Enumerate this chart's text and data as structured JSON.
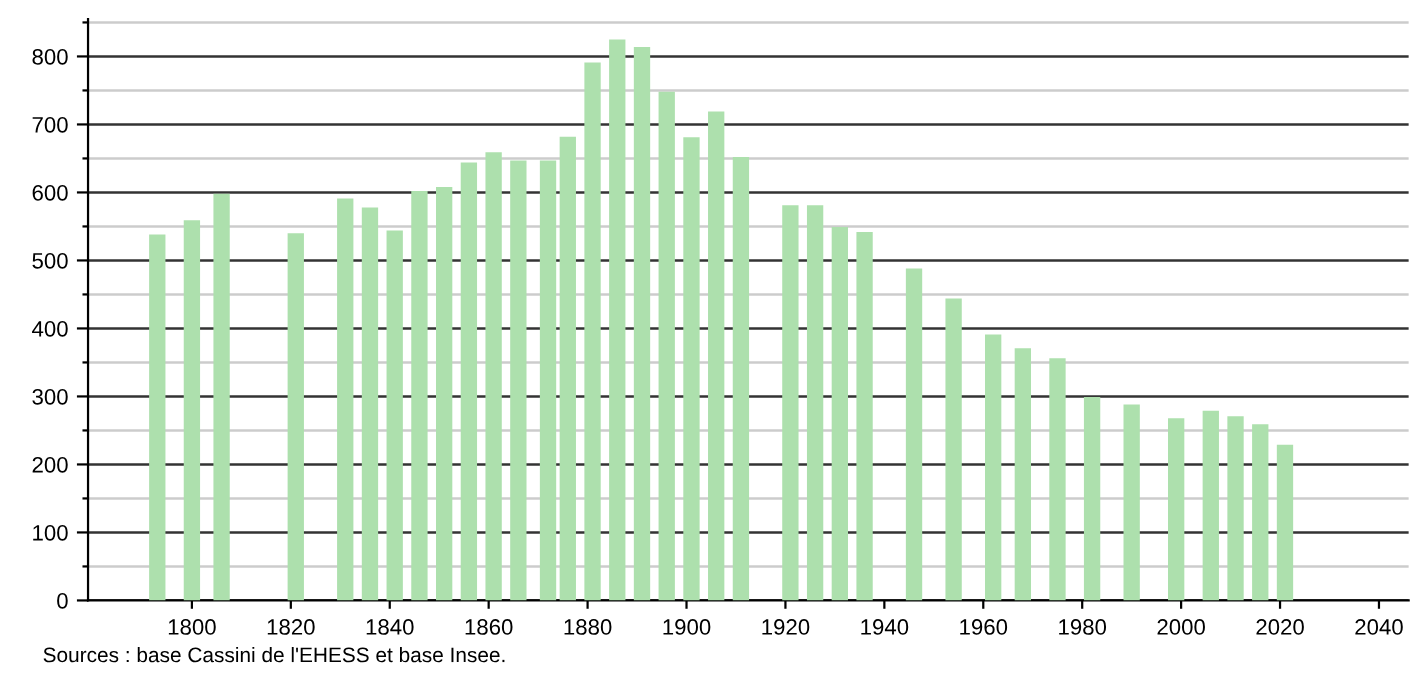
{
  "chart_data": {
    "type": "bar",
    "x": [
      1793,
      1800,
      1806,
      1821,
      1831,
      1836,
      1841,
      1846,
      1851,
      1856,
      1861,
      1866,
      1872,
      1876,
      1881,
      1886,
      1891,
      1896,
      1901,
      1906,
      1911,
      1921,
      1926,
      1931,
      1936,
      1946,
      1954,
      1962,
      1968,
      1975,
      1982,
      1990,
      1999,
      2006,
      2011,
      2016,
      2021
    ],
    "values": [
      538,
      559,
      598,
      540,
      591,
      578,
      544,
      602,
      608,
      644,
      659,
      647,
      647,
      682,
      791,
      825,
      814,
      748,
      681,
      719,
      652,
      581,
      581,
      549,
      542,
      488,
      444,
      391,
      371,
      356,
      299,
      288,
      268,
      279,
      271,
      259,
      229
    ],
    "color": "#ade0ad",
    "xlim": [
      1779,
      2046
    ],
    "xticks": [
      1800,
      1820,
      1840,
      1860,
      1880,
      1900,
      1920,
      1940,
      1960,
      1980,
      2000,
      2020,
      2040
    ],
    "ylim": [
      0,
      855
    ],
    "yticks": [
      0,
      {
        "value": 50,
        "label": null
      },
      100,
      {
        "value": 150,
        "label": null
      },
      200,
      {
        "value": 250,
        "label": null
      },
      300,
      {
        "value": 350,
        "label": null
      },
      400,
      {
        "value": 450,
        "label": null
      },
      500,
      {
        "value": 550,
        "label": null
      },
      600,
      {
        "value": 650,
        "label": null
      },
      700,
      {
        "value": 750,
        "label": null
      },
      800,
      {
        "value": 850,
        "label": null
      }
    ],
    "grid": "y",
    "annotations": [
      "Sources : base Cassini de l'EHESS et base Insee."
    ]
  }
}
